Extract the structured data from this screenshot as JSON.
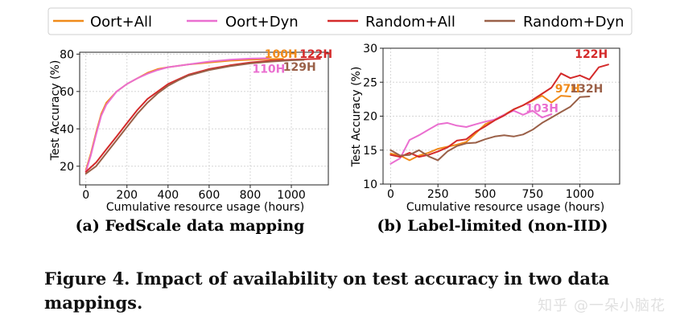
{
  "legend": [
    {
      "name": "Oort+All",
      "color": "#f08a1a"
    },
    {
      "name": "Oort+Dyn",
      "color": "#ea6fd0"
    },
    {
      "name": "Random+All",
      "color": "#d42a2a"
    },
    {
      "name": "Random+Dyn",
      "color": "#9a6048"
    }
  ],
  "chart_data": [
    {
      "type": "line",
      "title": "(a) FedScale data mapping",
      "xlabel": "Cumulative resource usage (hours)",
      "ylabel": "Test Accuracy (%)",
      "xlim": [
        -30,
        1180
      ],
      "ylim": [
        10,
        81
      ],
      "xticks": [
        0,
        200,
        400,
        600,
        800,
        1000
      ],
      "yticks": [
        20,
        40,
        60,
        80
      ],
      "grid": true,
      "series": [
        {
          "name": "Oort+All",
          "color": "#f08a1a",
          "x": [
            0,
            25,
            50,
            75,
            100,
            150,
            200,
            250,
            300,
            350,
            400,
            500,
            600,
            700,
            800,
            880,
            960
          ],
          "y": [
            18,
            27,
            38,
            48,
            54,
            60,
            64,
            67,
            70,
            72,
            73,
            74.5,
            75.5,
            76.5,
            77,
            77.3,
            77.5
          ]
        },
        {
          "name": "Oort+Dyn",
          "color": "#ea6fd0",
          "x": [
            0,
            25,
            50,
            75,
            100,
            150,
            200,
            250,
            300,
            350,
            400,
            500,
            600,
            700,
            800,
            890
          ],
          "y": [
            17,
            26,
            37,
            47,
            53,
            60,
            64,
            67,
            69.5,
            71.5,
            73,
            74.5,
            76,
            77,
            77.6,
            77.8
          ]
        },
        {
          "name": "Random+All",
          "color": "#d42a2a",
          "x": [
            0,
            50,
            100,
            150,
            200,
            250,
            300,
            350,
            400,
            450,
            500,
            600,
            700,
            800,
            900,
            1000,
            1100,
            1140
          ],
          "y": [
            17,
            22,
            29,
            36,
            43,
            50,
            56,
            60,
            64,
            66.5,
            69,
            72,
            74,
            75.5,
            76.5,
            77,
            77.4,
            77.5
          ]
        },
        {
          "name": "Random+Dyn",
          "color": "#9a6048",
          "x": [
            0,
            50,
            100,
            150,
            200,
            250,
            300,
            350,
            400,
            450,
            500,
            600,
            700,
            800,
            900,
            1000,
            1060
          ],
          "y": [
            16,
            20,
            27,
            34,
            41,
            48,
            54,
            59,
            63,
            66,
            68.5,
            71.5,
            73.5,
            75,
            76,
            76.7,
            76.9
          ]
        }
      ],
      "annotations": [
        {
          "text": "100H",
          "color": "#f08a1a",
          "x": 950,
          "y": 78
        },
        {
          "text": "122H",
          "color": "#d42a2a",
          "x": 1120,
          "y": 78
        },
        {
          "text": "110H",
          "color": "#ea6fd0",
          "x": 890,
          "y": 70
        },
        {
          "text": "129H",
          "color": "#9a6048",
          "x": 1040,
          "y": 71
        }
      ]
    },
    {
      "type": "line",
      "title": "(b) Label-limited (non-IID)",
      "xlabel": "Cumulative resource usage (hours)",
      "ylabel": "Test Accuracy (%)",
      "xlim": [
        -40,
        1210
      ],
      "ylim": [
        10,
        30
      ],
      "xticks": [
        0,
        250,
        500,
        750,
        1000
      ],
      "yticks": [
        10,
        15,
        20,
        25,
        30
      ],
      "grid": true,
      "series": [
        {
          "name": "Oort+All",
          "color": "#f08a1a",
          "x": [
            0,
            50,
            100,
            150,
            200,
            250,
            300,
            350,
            400,
            450,
            500,
            550,
            600,
            650,
            700,
            750,
            800,
            850,
            900,
            950
          ],
          "y": [
            14.5,
            14.2,
            13.5,
            14.2,
            14.6,
            15.2,
            15.5,
            15.8,
            16.2,
            17.5,
            18.8,
            19.5,
            20.2,
            21.0,
            21.6,
            22.3,
            23.0,
            22.0,
            23.0,
            22.9
          ]
        },
        {
          "name": "Oort+Dyn",
          "color": "#ea6fd0",
          "x": [
            0,
            50,
            100,
            150,
            200,
            250,
            300,
            350,
            400,
            450,
            500,
            550,
            600,
            650,
            700,
            750,
            800,
            850
          ],
          "y": [
            13.0,
            13.8,
            16.5,
            17.2,
            18.0,
            18.8,
            19.0,
            18.6,
            18.4,
            18.8,
            19.2,
            19.5,
            20.2,
            20.8,
            20.2,
            20.8,
            19.8,
            20.3
          ]
        },
        {
          "name": "Random+All",
          "color": "#d42a2a",
          "x": [
            0,
            50,
            100,
            150,
            200,
            250,
            300,
            350,
            400,
            450,
            500,
            550,
            600,
            650,
            700,
            750,
            800,
            850,
            900,
            950,
            1000,
            1050,
            1100,
            1150
          ],
          "y": [
            14.3,
            14.0,
            14.6,
            14.0,
            14.3,
            14.8,
            15.4,
            16.4,
            16.6,
            17.7,
            18.5,
            19.4,
            20.1,
            21.0,
            21.6,
            22.4,
            23.3,
            24.2,
            26.3,
            25.6,
            26.0,
            25.4,
            27.2,
            27.6
          ]
        },
        {
          "name": "Random+Dyn",
          "color": "#9a6048",
          "x": [
            0,
            50,
            100,
            150,
            200,
            250,
            300,
            350,
            400,
            450,
            500,
            550,
            600,
            650,
            700,
            750,
            800,
            850,
            900,
            950,
            1000,
            1050
          ],
          "y": [
            15.0,
            14.2,
            14.3,
            15.0,
            14.1,
            13.5,
            14.8,
            15.6,
            16.0,
            16.1,
            16.6,
            17.0,
            17.2,
            17.0,
            17.3,
            18.0,
            19.0,
            19.8,
            20.6,
            21.4,
            22.8,
            22.9
          ]
        }
      ],
      "annotations": [
        {
          "text": "97H",
          "color": "#f08a1a",
          "x": 935,
          "y": 23.5
        },
        {
          "text": "132H",
          "color": "#9a6048",
          "x": 1035,
          "y": 23.5
        },
        {
          "text": "122H",
          "color": "#d42a2a",
          "x": 1060,
          "y": 28.6
        },
        {
          "text": "103H",
          "color": "#ea6fd0",
          "x": 800,
          "y": 20.6
        }
      ]
    }
  ],
  "caption": "Figure 4. Impact of availability on test accuracy in two data mappings.",
  "watermark": "知乎 @一朵小脑花"
}
